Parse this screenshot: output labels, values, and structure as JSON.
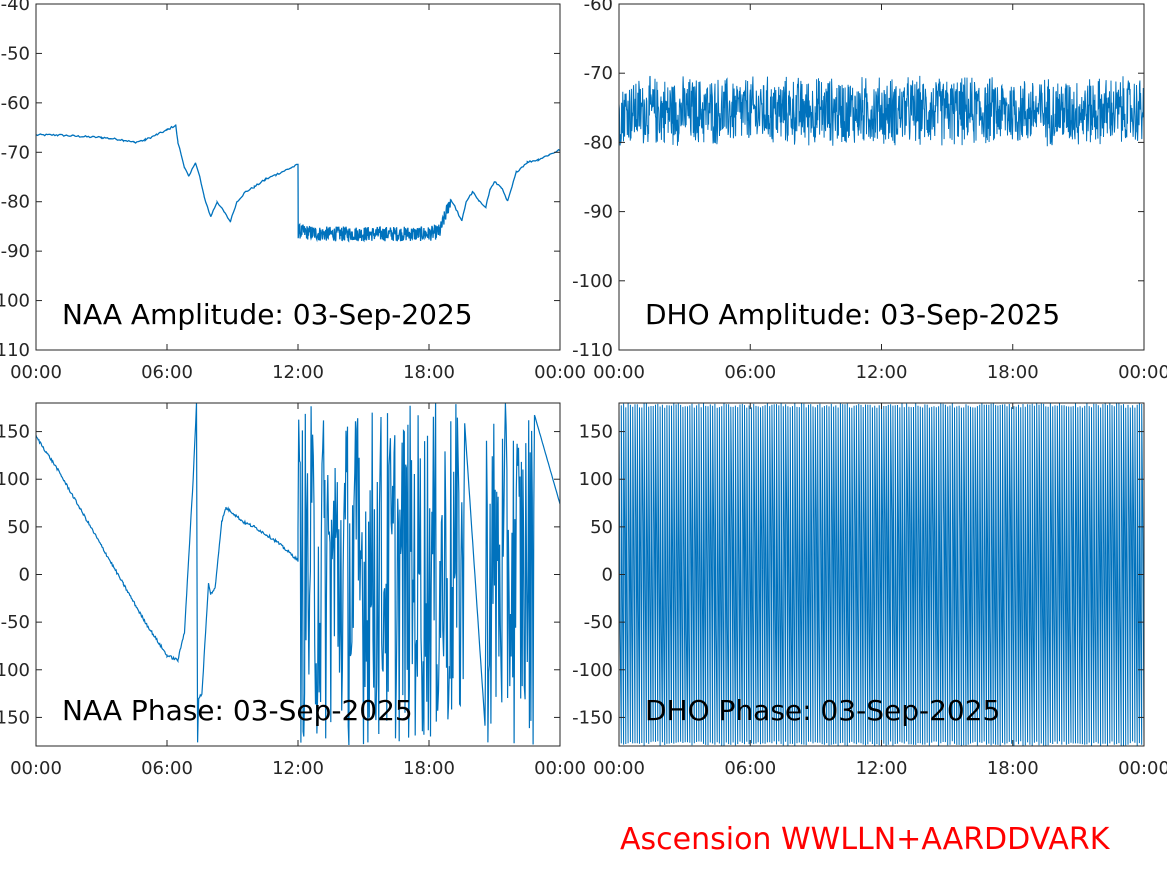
{
  "footer_text": "Ascension WWLLN+AARDDVARK",
  "colors": {
    "line": "#0072bd",
    "axis": "#262626",
    "footer": "#ff0000"
  },
  "chart_data": [
    {
      "type": "line",
      "title": "NAA Amplitude: 03-Sep-2025",
      "xlabel": "",
      "ylabel": "",
      "xlim": [
        "00:00",
        "24:00"
      ],
      "ylim": [
        -110,
        -40
      ],
      "x_ticks": [
        "00:00",
        "06:00",
        "12:00",
        "18:00",
        "00:00"
      ],
      "y_ticks": [
        "-40",
        "-50",
        "-60",
        "-70",
        "-80",
        "-90",
        "-100",
        "-110"
      ],
      "y_tick_values": [
        -40,
        -50,
        -60,
        -70,
        -80,
        -90,
        -100,
        -110
      ],
      "series": [
        {
          "x_hours": [
            0,
            1,
            2,
            3,
            4,
            4.5,
            5,
            5.5,
            6,
            6.4,
            6.5,
            6.8,
            7,
            7.3,
            7.5,
            7.7,
            8,
            8.3,
            8.6,
            8.9,
            9.2,
            9.6,
            10,
            10.5,
            11,
            11.5,
            12,
            12.01,
            13,
            14,
            15,
            16,
            17,
            18,
            18.5,
            19.0,
            19.3,
            19.5,
            19.7,
            20,
            20.3,
            20.6,
            20.8,
            21,
            21.3,
            21.6,
            22,
            22.5,
            23,
            23.5,
            24
          ],
          "y": [
            -66.5,
            -66.5,
            -66.8,
            -67,
            -67.5,
            -68,
            -67.5,
            -66.5,
            -65.5,
            -64.5,
            -68,
            -73,
            -75,
            -72,
            -75,
            -79,
            -83,
            -80,
            -82,
            -84,
            -80,
            -78,
            -77,
            -75.5,
            -74.5,
            -73.5,
            -72.5,
            -86,
            -86.5,
            -86.5,
            -86.5,
            -86.5,
            -86.5,
            -86.5,
            -86,
            -79.5,
            -82,
            -84,
            -80,
            -78,
            -80,
            -81,
            -77.5,
            -76,
            -77,
            -80,
            -74,
            -72,
            -71.5,
            -70.5,
            -69.5
          ],
          "noise_band": [
            0,
            0,
            0,
            0,
            0,
            0,
            0,
            0,
            0,
            0,
            0,
            0,
            0,
            0,
            0,
            0,
            0,
            0,
            0,
            0,
            0,
            0,
            0,
            0,
            0,
            0,
            0,
            1.5,
            1.5,
            1.5,
            1.5,
            1.5,
            1.5,
            1.5,
            1.5,
            0,
            0,
            0,
            0,
            0,
            0,
            0,
            0,
            0,
            0,
            0,
            0,
            0,
            0,
            0,
            0
          ]
        }
      ]
    },
    {
      "type": "line",
      "title": "DHO Amplitude: 03-Sep-2025",
      "xlabel": "",
      "ylabel": "",
      "xlim": [
        "00:00",
        "24:00"
      ],
      "ylim": [
        -110,
        -60
      ],
      "x_ticks": [
        "00:00",
        "06:00",
        "12:00",
        "18:00",
        "00:00"
      ],
      "y_ticks": [
        "-60",
        "-70",
        "-80",
        "-90",
        "-100",
        "-110"
      ],
      "y_tick_values": [
        -60,
        -70,
        -80,
        -90,
        -100,
        -110
      ],
      "series": [
        {
          "noise_range": [
            -81,
            -70
          ],
          "center": -75.5,
          "dense": true
        }
      ]
    },
    {
      "type": "line",
      "title": "NAA Phase: 03-Sep-2025",
      "xlabel": "",
      "ylabel": "",
      "xlim": [
        "00:00",
        "24:00"
      ],
      "ylim": [
        -180,
        180
      ],
      "x_ticks": [
        "00:00",
        "06:00",
        "12:00",
        "18:00",
        "00:00"
      ],
      "y_ticks": [
        "150",
        "100",
        "50",
        "0",
        "-50",
        "-100",
        "-150"
      ],
      "y_tick_values": [
        150,
        100,
        50,
        0,
        -50,
        -100,
        -150
      ],
      "series": [
        {
          "x_hours": [
            0,
            1,
            2,
            3,
            4,
            5,
            6,
            6.5,
            6.8,
            7.0,
            7.2,
            7.35,
            7.4,
            7.45,
            7.6,
            7.9,
            8.0,
            8.2,
            8.5,
            8.7,
            9,
            9.5,
            10,
            11,
            12
          ],
          "y": [
            145,
            110,
            70,
            30,
            -10,
            -50,
            -85,
            -90,
            -60,
            20,
            100,
            180,
            -175,
            -130,
            -125,
            -10,
            -20,
            -15,
            55,
            70,
            65,
            55,
            50,
            35,
            15
          ]
        }
      ],
      "chaotic_segments_hours": [
        [
          12,
          19.7
        ],
        [
          20,
          22.8
        ],
        [
          22.8,
          24
        ]
      ]
    },
    {
      "type": "line",
      "title": "DHO Phase: 03-Sep-2025",
      "xlabel": "",
      "ylabel": "",
      "xlim": [
        "00:00",
        "24:00"
      ],
      "ylim": [
        -180,
        180
      ],
      "x_ticks": [
        "00:00",
        "06:00",
        "12:00",
        "18:00",
        "00:00"
      ],
      "y_ticks": [
        "150",
        "100",
        "50",
        "0",
        "-50",
        "-100",
        "-150"
      ],
      "y_tick_values": [
        150,
        100,
        50,
        0,
        -50,
        -100,
        -150
      ],
      "series": [
        {
          "wrap_cycles": 230,
          "range": [
            -180,
            180
          ],
          "dense": true
        }
      ]
    }
  ]
}
